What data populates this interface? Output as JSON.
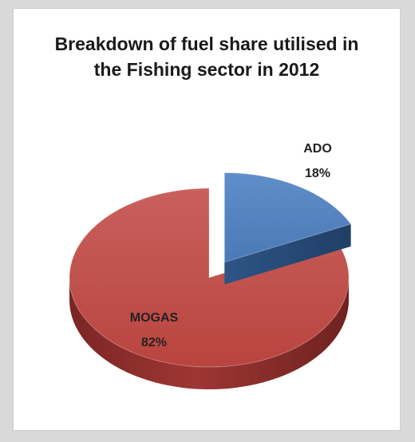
{
  "chart_data": {
    "type": "pie",
    "title_lines": [
      "Breakdown of fuel share utilised in",
      "the Fishing sector in 2012"
    ],
    "slices": [
      {
        "label": "ADO",
        "value": 18,
        "value_label": "18%",
        "color": "#4f81bd",
        "exploded": true
      },
      {
        "label": "MOGAS",
        "value": 82,
        "value_label": "82%",
        "color": "#c0504d",
        "exploded": false
      }
    ]
  }
}
